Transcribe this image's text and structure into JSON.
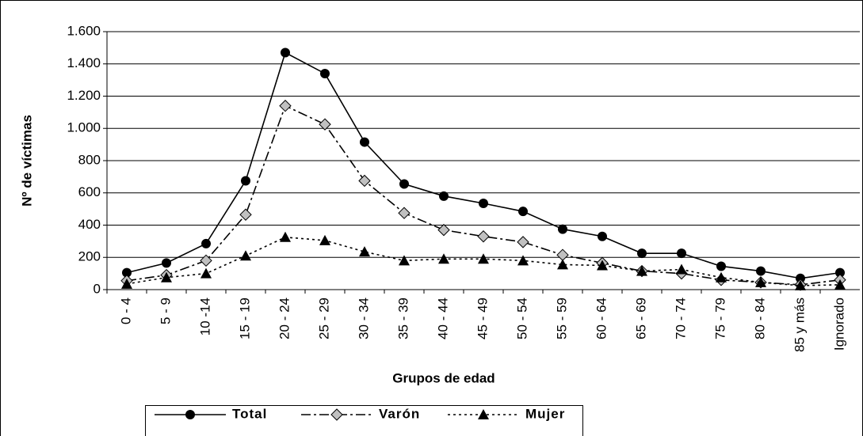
{
  "chart_data": {
    "type": "line",
    "x_label": "Grupos de edad",
    "y_label": "Nº de víctimas",
    "categories": [
      "0 - 4",
      "5 - 9",
      "10 -14",
      "15 - 19",
      "20 - 24",
      "25 - 29",
      "30 - 34",
      "35 - 39",
      "40 - 44",
      "45 - 49",
      "50 - 54",
      "55 - 59",
      "60 - 64",
      "65 - 69",
      "70 - 74",
      "75 - 79",
      "80 - 84",
      "85 y más",
      "Ignorado"
    ],
    "series": [
      {
        "name": "Total",
        "color": "#000000",
        "marker": "circle",
        "dash": "solid",
        "values": [
          105,
          165,
          285,
          675,
          1470,
          1340,
          915,
          655,
          580,
          535,
          485,
          375,
          330,
          225,
          225,
          145,
          115,
          70,
          105
        ]
      },
      {
        "name": "Varón",
        "color": "#000000",
        "marker": "diamond",
        "dash": "dashdot",
        "values": [
          55,
          90,
          180,
          465,
          1140,
          1025,
          675,
          475,
          370,
          330,
          295,
          215,
          165,
          115,
          100,
          60,
          45,
          30,
          60
        ]
      },
      {
        "name": "Mujer",
        "color": "#000000",
        "marker": "triangle",
        "dash": "dotted",
        "values": [
          35,
          75,
          100,
          210,
          325,
          305,
          235,
          180,
          190,
          190,
          180,
          155,
          150,
          115,
          125,
          75,
          45,
          25,
          30
        ]
      }
    ],
    "ylim": [
      0,
      1600
    ],
    "yticks": [
      0,
      200,
      400,
      600,
      800,
      {
        "value": 1000,
        "label": "1.000"
      },
      {
        "value": 1200,
        "label": "1.200"
      },
      {
        "value": 1400,
        "label": "1.400"
      },
      {
        "value": 1600,
        "label": "1.600"
      }
    ],
    "grid": true,
    "legend": "bottom"
  }
}
